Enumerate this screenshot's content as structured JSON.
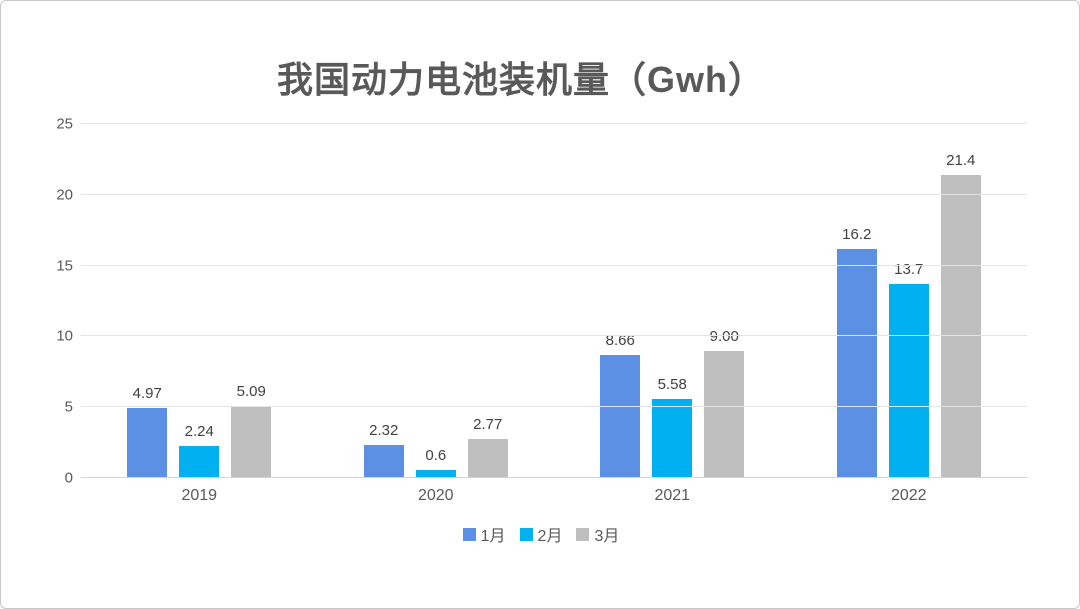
{
  "title": "我国动力电池装机量（Gwh）",
  "chart_data": {
    "type": "bar",
    "title": "我国动力电池装机量（Gwh）",
    "categories": [
      "2019",
      "2020",
      "2021",
      "2022"
    ],
    "series": [
      {
        "name": "1月",
        "color": "#5B90E5",
        "values": [
          4.97,
          2.32,
          8.66,
          16.2
        ],
        "labels": [
          "4.97",
          "2.32",
          "8.66",
          "16.2"
        ]
      },
      {
        "name": "2月",
        "color": "#00B0F0",
        "values": [
          2.24,
          0.6,
          5.58,
          13.7
        ],
        "labels": [
          "2.24",
          "0.6",
          "5.58",
          "13.7"
        ]
      },
      {
        "name": "3月",
        "color": "#BFBFBF",
        "values": [
          5.09,
          2.77,
          9.0,
          21.4
        ],
        "labels": [
          "5.09",
          "2.77",
          "9.00",
          "21.4"
        ]
      }
    ],
    "xlabel": "",
    "ylabel": "",
    "ylim": [
      0,
      25
    ],
    "yticks": [
      0,
      5,
      10,
      15,
      20,
      25
    ],
    "grid": true,
    "legend_position": "bottom",
    "colors": {
      "title_text": "#595959",
      "axis_text": "#595959",
      "value_label_text": "#404040",
      "gridline": "#E4E4E4",
      "card_border": "#C8C8C8",
      "background": "#FFFFFF"
    }
  }
}
